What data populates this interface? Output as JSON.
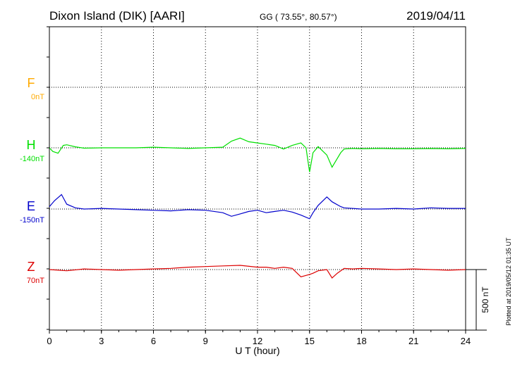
{
  "chart_data": {
    "type": "line",
    "title": "Dixon Island (DIK)  [AARI]",
    "coords": "GG ( 73.55°,  80.57°)",
    "date": "2019/04/11",
    "xlabel": "U T (hour)",
    "xlim": [
      0,
      24
    ],
    "xticks": [
      "0",
      "3",
      "6",
      "9",
      "12",
      "15",
      "18",
      "21",
      "24"
    ],
    "scale_bar_label": "500 nT",
    "plotted_note": "Plotted at 2019/05/12 01:35 UT",
    "colors": {
      "F": "#ffaa00",
      "H": "#00e000",
      "E": "#0000cc",
      "Z": "#dd0000",
      "axis": "#000000"
    },
    "series": [
      {
        "name": "F",
        "baseline": "0nT",
        "values": []
      },
      {
        "name": "H",
        "baseline": "-140nT",
        "x": [
          0,
          0.2,
          0.5,
          0.8,
          1,
          1.5,
          2,
          3,
          4,
          5,
          6,
          7,
          8,
          9,
          10,
          10.5,
          11,
          11.5,
          12,
          12.5,
          13,
          13.5,
          14,
          14.5,
          14.8,
          15,
          15.2,
          15.5,
          16,
          16.3,
          16.8,
          17,
          17.5,
          18,
          19,
          20,
          21,
          22,
          23,
          24
        ],
        "values": [
          0,
          -30,
          -45,
          20,
          25,
          8,
          -3,
          0,
          0,
          0,
          5,
          0,
          -5,
          0,
          5,
          55,
          80,
          50,
          40,
          30,
          20,
          -10,
          20,
          40,
          0,
          -200,
          -40,
          10,
          -60,
          -160,
          -40,
          -10,
          -5,
          -8,
          -5,
          -8,
          -8,
          -6,
          -8,
          -5
        ]
      },
      {
        "name": "E",
        "baseline": "-150nT",
        "x": [
          0,
          0.3,
          0.7,
          1,
          1.5,
          2,
          3,
          4,
          5,
          6,
          7,
          8,
          9,
          10,
          10.5,
          11,
          11.5,
          12,
          12.5,
          13,
          13.5,
          14,
          14.5,
          15,
          15.2,
          15.5,
          16,
          16.3,
          16.8,
          17,
          18,
          19,
          20,
          21,
          22,
          23,
          24
        ],
        "values": [
          20,
          70,
          120,
          40,
          10,
          0,
          5,
          0,
          -5,
          -10,
          -15,
          -5,
          -10,
          -30,
          -60,
          -40,
          -20,
          -10,
          -30,
          -20,
          -10,
          -25,
          -50,
          -80,
          -30,
          30,
          100,
          60,
          20,
          10,
          0,
          0,
          5,
          0,
          10,
          5,
          5
        ]
      },
      {
        "name": "Z",
        "baseline": "70nT",
        "x": [
          0,
          1,
          2,
          3,
          4,
          5,
          6,
          7,
          8,
          9,
          10,
          11,
          12,
          12.5,
          13,
          13.5,
          14,
          14.5,
          15,
          15.2,
          15.5,
          16,
          16.3,
          16.6,
          17,
          17.5,
          18,
          19,
          20,
          21,
          22,
          23,
          24
        ],
        "values": [
          0,
          -10,
          5,
          0,
          -5,
          0,
          5,
          10,
          20,
          25,
          30,
          35,
          20,
          20,
          10,
          20,
          10,
          -60,
          -40,
          -30,
          -10,
          0,
          -70,
          -30,
          10,
          5,
          10,
          5,
          0,
          5,
          0,
          -5,
          0
        ]
      }
    ]
  }
}
